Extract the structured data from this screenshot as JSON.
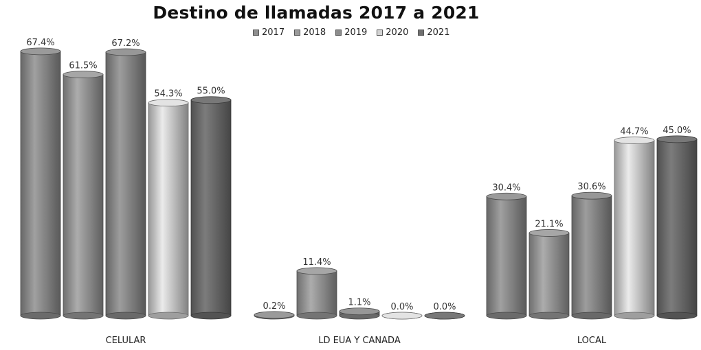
{
  "chart_data": {
    "type": "bar",
    "title": "Destino de llamadas 2017 a 2021",
    "xlabel": "",
    "ylabel": "",
    "ylim": [
      0,
      70
    ],
    "grid": false,
    "legend_position": "top",
    "categories": [
      "CELULAR",
      "LD EUA Y CANADA",
      "LOCAL"
    ],
    "series": [
      {
        "name": "2017",
        "values": [
          67.4,
          0.2,
          30.4
        ],
        "labels": [
          "67.4%",
          "0.2%",
          "30.4%"
        ],
        "color": "#8f8f8f"
      },
      {
        "name": "2018",
        "values": [
          61.5,
          11.4,
          21.1
        ],
        "labels": [
          "61.5%",
          "11.4%",
          "21.1%"
        ],
        "color": "#9a9a9a"
      },
      {
        "name": "2019",
        "values": [
          67.2,
          1.1,
          30.6
        ],
        "labels": [
          "67.2%",
          "1.1%",
          "30.6%"
        ],
        "color": "#8c8c8c"
      },
      {
        "name": "2020",
        "values": [
          54.3,
          0.0,
          44.7
        ],
        "labels": [
          "54.3%",
          "0.0%",
          "44.7%"
        ],
        "color": "#d2d2d2"
      },
      {
        "name": "2021",
        "values": [
          55.0,
          0.0,
          45.0
        ],
        "labels": [
          "55.0%",
          "0.0%",
          "45.0%"
        ],
        "color": "#6f6f6f"
      }
    ]
  }
}
